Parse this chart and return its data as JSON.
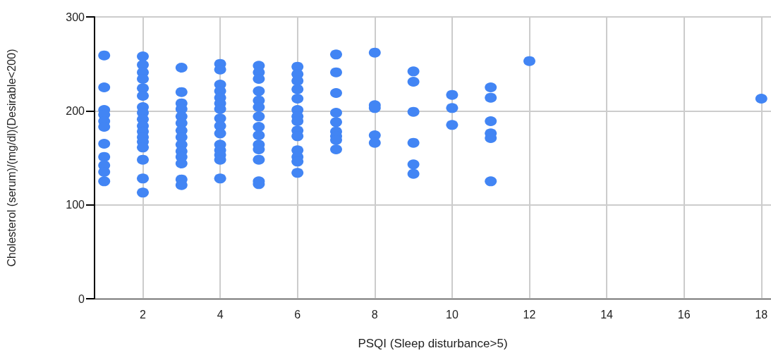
{
  "chart_data": {
    "type": "scatter",
    "xlabel": "PSQI (Sleep disturbance>5)",
    "ylabel": "Cholesterol (serum)/(mg/dl)(Desirable<200)",
    "x": [
      1,
      1,
      1,
      1,
      1,
      1,
      1,
      1,
      1,
      1,
      1,
      2,
      2,
      2,
      2,
      2,
      2,
      2,
      2,
      2,
      2,
      2,
      2,
      2,
      2,
      2,
      2,
      2,
      3,
      3,
      3,
      3,
      3,
      3,
      3,
      3,
      3,
      3,
      3,
      3,
      3,
      3,
      4,
      4,
      4,
      4,
      4,
      4,
      4,
      4,
      4,
      4,
      4,
      4,
      4,
      4,
      4,
      5,
      5,
      5,
      5,
      5,
      5,
      5,
      5,
      5,
      5,
      5,
      5,
      5,
      5,
      6,
      6,
      6,
      6,
      6,
      6,
      6,
      6,
      6,
      6,
      6,
      6,
      6,
      6,
      7,
      7,
      7,
      7,
      7,
      7,
      7,
      7,
      7,
      8,
      8,
      8,
      8,
      8,
      9,
      9,
      9,
      9,
      9,
      9,
      10,
      10,
      10,
      11,
      11,
      11,
      11,
      11,
      11,
      12,
      18
    ],
    "values": [
      259,
      225,
      201,
      196,
      189,
      183,
      165,
      151,
      142,
      135,
      125,
      258,
      249,
      241,
      234,
      224,
      216,
      204,
      198,
      191,
      184,
      178,
      172,
      167,
      161,
      148,
      128,
      113,
      246,
      220,
      208,
      202,
      194,
      187,
      179,
      172,
      164,
      157,
      151,
      144,
      127,
      121,
      250,
      244,
      228,
      221,
      214,
      208,
      202,
      192,
      184,
      176,
      164,
      158,
      153,
      148,
      128,
      248,
      241,
      234,
      221,
      211,
      204,
      194,
      183,
      174,
      164,
      159,
      148,
      125,
      122,
      247,
      239,
      232,
      223,
      213,
      201,
      194,
      189,
      179,
      173,
      158,
      151,
      146,
      134,
      260,
      241,
      219,
      198,
      188,
      178,
      173,
      169,
      159,
      262,
      206,
      203,
      174,
      166,
      242,
      231,
      199,
      166,
      143,
      133,
      217,
      203,
      185,
      225,
      214,
      189,
      176,
      171,
      125,
      253,
      213
    ],
    "color": "#4285f4",
    "marker": "circle",
    "xlim": [
      0.75,
      18.25
    ],
    "xticks": [
      2,
      4,
      6,
      8,
      10,
      12,
      14,
      16,
      18
    ],
    "ylim": [
      0,
      300
    ],
    "yticks": [
      0,
      100,
      200,
      300
    ],
    "grid": true
  }
}
